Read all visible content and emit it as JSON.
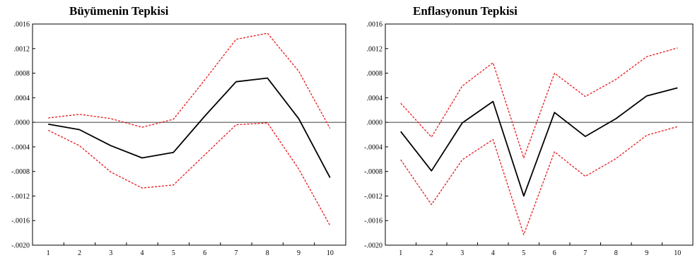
{
  "chart_data": [
    {
      "type": "line",
      "title": "Büyümenin Tepkisi",
      "x": [
        1,
        2,
        3,
        4,
        5,
        6,
        7,
        8,
        9,
        10
      ],
      "y_ticks": [
        ".0016",
        ".0012",
        ".0008",
        ".0004",
        ".0000",
        "-.0004",
        "-.0008",
        "-.0012",
        "-.0016",
        "-.0020"
      ],
      "ylim": [
        -0.002,
        0.0016
      ],
      "series": [
        {
          "style": "response",
          "color": "#000000",
          "dashed": false,
          "values": [
            -3e-05,
            -0.00012,
            -0.00038,
            -0.00058,
            -0.00049,
            0.0001,
            0.00066,
            0.00072,
            6e-05,
            -0.0009
          ]
        },
        {
          "style": "upper-band",
          "color": "#e8191b",
          "dashed": true,
          "values": [
            7e-05,
            0.00013,
            6e-05,
            -8e-05,
            5e-05,
            0.00069,
            0.00135,
            0.00145,
            0.00083,
            -0.0001
          ]
        },
        {
          "style": "lower-band",
          "color": "#e8191b",
          "dashed": true,
          "values": [
            -0.00013,
            -0.00038,
            -0.00081,
            -0.00107,
            -0.00102,
            -0.00053,
            -4e-05,
            -1e-05,
            -0.00076,
            -0.00168
          ]
        }
      ],
      "zero_line": true,
      "grid": false
    },
    {
      "type": "line",
      "title": "Enflasyonun Tepkisi",
      "x": [
        1,
        2,
        3,
        4,
        5,
        6,
        7,
        8,
        9,
        10
      ],
      "y_ticks": [
        ".0016",
        ".0012",
        ".0008",
        ".0004",
        ".0000",
        "-.0004",
        "-.0008",
        "-.0012",
        "-.0016",
        "-.0020"
      ],
      "ylim": [
        -0.002,
        0.0016
      ],
      "series": [
        {
          "style": "response",
          "color": "#000000",
          "dashed": false,
          "values": [
            -0.00015,
            -0.00079,
            -1e-05,
            0.00034,
            -0.0012,
            0.00016,
            -0.00023,
            6e-05,
            0.00043,
            0.00056
          ]
        },
        {
          "style": "upper-band",
          "color": "#e8191b",
          "dashed": true,
          "values": [
            0.00031,
            -0.00024,
            0.00059,
            0.00097,
            -0.00058,
            0.0008,
            0.00042,
            0.0007,
            0.00107,
            0.00121
          ]
        },
        {
          "style": "lower-band",
          "color": "#e8191b",
          "dashed": true,
          "values": [
            -0.00061,
            -0.00134,
            -0.00061,
            -0.00028,
            -0.00183,
            -0.00048,
            -0.00088,
            -0.00059,
            -0.00021,
            -7e-05
          ]
        }
      ],
      "zero_line": true,
      "grid": false
    }
  ]
}
